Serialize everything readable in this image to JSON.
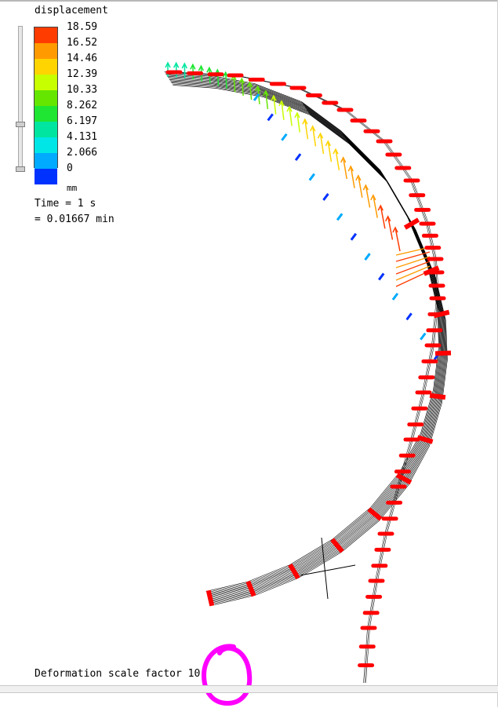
{
  "legend": {
    "title": "displacement",
    "unit": "mm",
    "levels": [
      "18.59",
      "16.52",
      "14.46",
      "12.39",
      "10.33",
      "8.262",
      "6.197",
      "4.131",
      "2.066",
      "0"
    ],
    "colors": [
      "#ff3c00",
      "#ff9b00",
      "#ffd400",
      "#c8ff00",
      "#64e600",
      "#1ee632",
      "#00e6a0",
      "#00e6e6",
      "#00aaff",
      "#0032ff"
    ]
  },
  "time": {
    "line1": "Time = 1 s",
    "line2": "= 0.01667 min"
  },
  "footer": {
    "deformation_label": "Deformation scale factor",
    "deformation_value": "10"
  },
  "colors": {
    "constraint_marker": "#ff0000",
    "mesh_line": "#000000",
    "annotation_circle": "#ff00ff"
  }
}
